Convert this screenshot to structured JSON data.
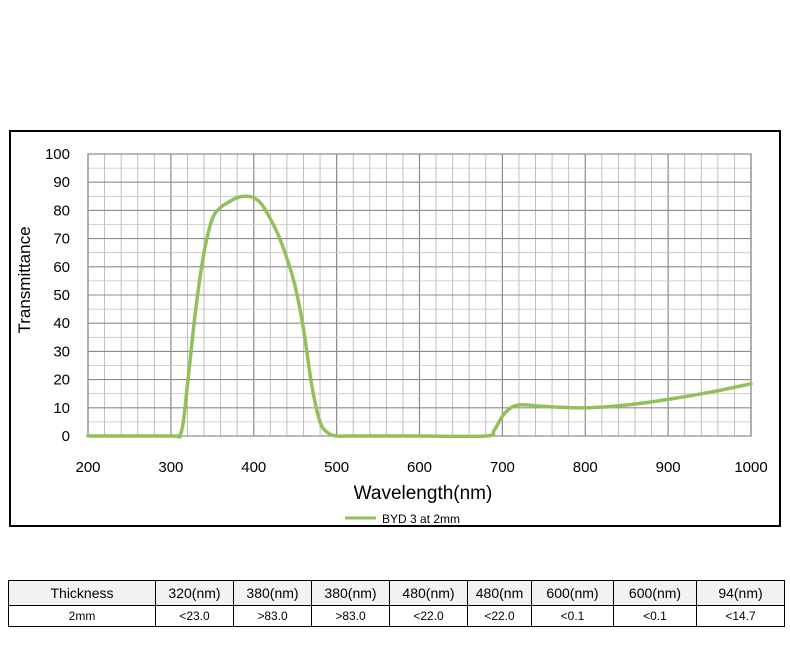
{
  "chart_data": {
    "type": "line",
    "xlabel": "Wavelength(nm)",
    "ylabel": "Transmittance",
    "xlim": [
      200,
      1000
    ],
    "ylim": [
      0,
      100
    ],
    "x_ticks": [
      200,
      300,
      400,
      500,
      600,
      700,
      800,
      900,
      1000
    ],
    "y_ticks": [
      0,
      10,
      20,
      30,
      40,
      50,
      60,
      70,
      80,
      90,
      100
    ],
    "grid": true,
    "legend_position": "bottom-center",
    "series": [
      {
        "name": "BYD 3 at 2mm",
        "color": "#92c05a",
        "x": [
          200,
          300,
          310,
          315,
          320,
          330,
          340,
          350,
          360,
          370,
          380,
          390,
          400,
          410,
          420,
          430,
          440,
          450,
          460,
          470,
          480,
          490,
          500,
          510,
          520,
          530,
          600,
          680,
          690,
          700,
          710,
          720,
          730,
          750,
          800,
          850,
          900,
          950,
          1000
        ],
        "y": [
          0,
          0,
          0,
          5,
          18,
          45,
          65,
          77,
          81,
          83,
          84.5,
          85,
          84.5,
          82,
          77,
          71,
          63,
          53,
          38,
          18,
          5,
          1,
          0,
          0,
          0,
          0,
          0,
          0,
          2,
          7,
          10,
          11,
          11,
          10.5,
          10,
          11,
          13,
          15.5,
          18.5
        ]
      }
    ]
  },
  "table": {
    "header": [
      "Thickness",
      "320(nm)",
      "380(nm)",
      "380(nm)",
      "480(nm)",
      "480(nm",
      "600(nm)",
      "600(nm)",
      "94(nm)"
    ],
    "rows": [
      [
        "2mm",
        "<23.0",
        ">83.0",
        ">83.0",
        "<22.0",
        "<22.0",
        "<0.1",
        "<0.1",
        "<14.7"
      ]
    ]
  }
}
